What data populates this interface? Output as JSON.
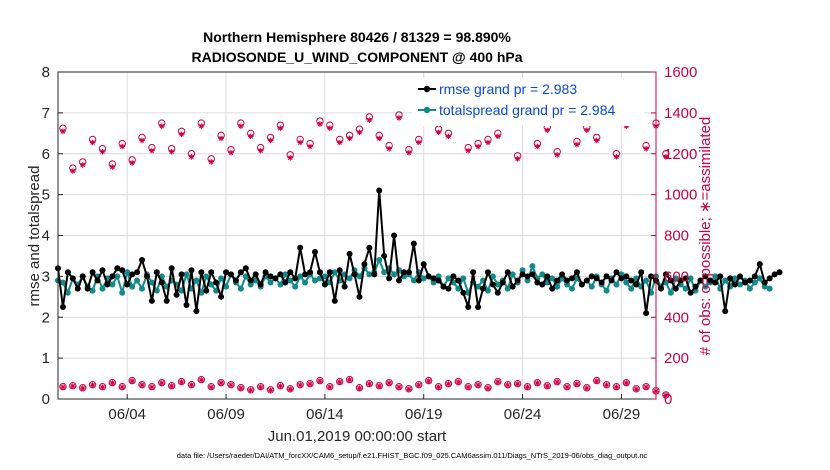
{
  "chart_data": {
    "type": "line",
    "title": "Northern Hemisphere 80426 / 81329 = 98.890%",
    "subtitle": "RADIOSONDE_U_WIND_COMPONENT @ 400 hPa",
    "xlabel": "Jun.01,2019 00:00:00 start",
    "ylabel_left": "rmse and totalspread",
    "ylabel_right": "# of obs: o=possible; ∗=assimilated",
    "ylim_left": [
      0,
      8
    ],
    "ylim_right": [
      0,
      1600
    ],
    "xlim": [
      0.5,
      30.75
    ],
    "yticks_left": [
      0,
      1,
      2,
      3,
      4,
      5,
      6,
      7,
      8
    ],
    "yticks_right": [
      0,
      200,
      400,
      600,
      800,
      1000,
      1200,
      1400,
      1600
    ],
    "xticks": [
      {
        "x": 4,
        "label": "06/04"
      },
      {
        "x": 9,
        "label": "06/09"
      },
      {
        "x": 14,
        "label": "06/14"
      },
      {
        "x": 19,
        "label": "06/19"
      },
      {
        "x": 24,
        "label": "06/24"
      },
      {
        "x": 29,
        "label": "06/29"
      }
    ],
    "footer": "data file: /Users/raeder/DAI/ATM_forcXX/CAM6_setup/f.e21.FHIST_BGC.f09_025.CAM6assim.011/Diags_NTrS_2019-06/obs_diag_output.nc",
    "x_start": 0.5,
    "x_step": 0.25,
    "series": [
      {
        "name": "rmse grand pr = 2.983",
        "axis": "left",
        "color": "#000000",
        "marker": "circle",
        "values": [
          3.2,
          2.25,
          3.1,
          2.95,
          2.7,
          3.0,
          2.7,
          3.1,
          2.9,
          3.15,
          2.8,
          3.0,
          3.2,
          3.15,
          2.8,
          3.05,
          3.1,
          3.4,
          3.0,
          2.4,
          3.1,
          2.85,
          2.4,
          3.2,
          2.55,
          3.05,
          2.3,
          3.15,
          2.15,
          3.1,
          2.65,
          3.1,
          2.85,
          2.5,
          3.1,
          3.05,
          2.9,
          3.1,
          3.2,
          2.9,
          3.05,
          2.8,
          3.1,
          3.0,
          2.95,
          3.05,
          2.85,
          3.1,
          2.95,
          3.7,
          3.05,
          3.1,
          3.6,
          3.1,
          2.8,
          3.1,
          2.4,
          3.15,
          2.75,
          3.55,
          3.05,
          2.5,
          3.3,
          3.7,
          3.05,
          5.1,
          3.5,
          2.95,
          4.0,
          2.9,
          3.1,
          3.1,
          3.8,
          2.9,
          3.3,
          3.0,
          2.95,
          2.9,
          2.75,
          2.7,
          3.0,
          2.9,
          2.6,
          2.25,
          3.1,
          2.25,
          2.7,
          3.1,
          2.8,
          2.6,
          2.85,
          3.1,
          2.75,
          2.9,
          3.05,
          3.0,
          3.05,
          2.85,
          2.8,
          3.0,
          2.7,
          2.9,
          3.05,
          2.9,
          2.95,
          3.1,
          2.8,
          2.9,
          3.0,
          2.95,
          2.85,
          3.0,
          2.9,
          3.1,
          2.95,
          3.0,
          2.9,
          2.8,
          3.1,
          2.1,
          3.0,
          2.9,
          2.7,
          3.05,
          2.9,
          2.7,
          2.9,
          2.95,
          2.6,
          2.75,
          2.9,
          3.0,
          2.9,
          2.85,
          3.0,
          2.15,
          2.95,
          2.8,
          3.0,
          2.85,
          2.9,
          3.0,
          3.3,
          2.85,
          2.95,
          3.05,
          3.1
        ]
      },
      {
        "name": "totalspread grand pr = 2.984",
        "axis": "left",
        "color": "#138a8a",
        "marker": "circle",
        "values": [
          2.9,
          2.85,
          2.6,
          2.95,
          2.8,
          3.0,
          2.75,
          2.65,
          3.0,
          2.7,
          2.95,
          2.8,
          3.0,
          2.6,
          3.1,
          2.75,
          2.9,
          2.7,
          3.05,
          2.85,
          2.65,
          3.0,
          2.75,
          2.9,
          2.8,
          2.65,
          3.05,
          2.7,
          2.9,
          2.6,
          3.0,
          2.8,
          2.65,
          2.95,
          2.75,
          3.05,
          2.85,
          2.7,
          3.0,
          2.8,
          2.9,
          2.75,
          3.0,
          2.85,
          2.95,
          2.8,
          3.05,
          2.9,
          2.75,
          3.0,
          2.85,
          3.05,
          2.9,
          2.95,
          3.0,
          2.85,
          3.1,
          2.9,
          3.05,
          2.95,
          3.15,
          3.0,
          3.2,
          3.05,
          3.1,
          3.4,
          3.1,
          3.2,
          3.05,
          3.15,
          3.0,
          3.05,
          2.9,
          3.1,
          2.95,
          3.0,
          2.85,
          3.0,
          2.75,
          2.95,
          2.85,
          2.7,
          2.95,
          2.6,
          2.85,
          2.75,
          2.9,
          2.65,
          3.0,
          2.8,
          2.9,
          2.7,
          3.05,
          2.85,
          3.15,
          2.9,
          3.25,
          2.95,
          3.05,
          2.85,
          2.95,
          2.75,
          2.95,
          2.8,
          2.7,
          2.95,
          2.8,
          2.9,
          2.75,
          3.0,
          2.8,
          2.65,
          2.95,
          2.8,
          3.05,
          2.85,
          2.7,
          2.95,
          2.75,
          2.9,
          2.6,
          3.0,
          2.75,
          2.85,
          2.6,
          2.95,
          2.8,
          2.7,
          2.95,
          2.65,
          2.9,
          2.75,
          2.85,
          3.0,
          2.7,
          2.9,
          2.75,
          2.95,
          2.8,
          2.9,
          2.7,
          2.85,
          2.95,
          2.75,
          2.7
        ]
      }
    ],
    "obs_possible": {
      "name": "possible",
      "axis": "right",
      "color": "#cc0044",
      "marker": "circle",
      "x_start": 0.75,
      "x_step": 0.5,
      "values": [
        1325,
        1130,
        1160,
        1270,
        1225,
        1150,
        1250,
        1170,
        1280,
        1230,
        1350,
        1225,
        1310,
        1200,
        1350,
        1175,
        1290,
        1220,
        1350,
        1300,
        1230,
        1280,
        1340,
        1195,
        1270,
        1250,
        1360,
        1340,
        1270,
        1290,
        1320,
        1380,
        1290,
        1240,
        1390,
        1220,
        1270,
        1370,
        1320,
        1300,
        1380,
        1230,
        1250,
        1270,
        1300,
        1410,
        1190,
        1380,
        1250,
        1330,
        1210,
        1370,
        1260,
        1330,
        1280,
        1400,
        1200,
        1350,
        1420,
        1240,
        1350,
        1200
      ]
    },
    "obs_assimilated": {
      "name": "assimilated",
      "axis": "right",
      "color": "#cc0044",
      "marker": "asterisk",
      "x_start": 0.75,
      "x_step": 0.5,
      "values": [
        1310,
        1115,
        1145,
        1255,
        1210,
        1135,
        1235,
        1155,
        1265,
        1215,
        1335,
        1210,
        1295,
        1185,
        1335,
        1160,
        1275,
        1205,
        1335,
        1285,
        1215,
        1265,
        1325,
        1180,
        1255,
        1235,
        1345,
        1325,
        1255,
        1275,
        1305,
        1365,
        1275,
        1225,
        1375,
        1205,
        1255,
        1355,
        1305,
        1285,
        1365,
        1215,
        1235,
        1255,
        1285,
        1395,
        1175,
        1365,
        1235,
        1315,
        1195,
        1355,
        1245,
        1315,
        1265,
        1385,
        1185,
        1335,
        1405,
        1225,
        1335,
        1185
      ]
    },
    "low_possible": {
      "name": "low possible",
      "axis": "right",
      "color": "#cc0044",
      "marker": "circle",
      "x_start": 0.75,
      "x_step": 0.5,
      "values": [
        60,
        65,
        55,
        70,
        60,
        80,
        60,
        90,
        70,
        60,
        80,
        65,
        85,
        70,
        95,
        60,
        80,
        70,
        55,
        45,
        60,
        45,
        65,
        50,
        70,
        75,
        90,
        60,
        85,
        95,
        55,
        75,
        65,
        80,
        60,
        50,
        70,
        90,
        60,
        75,
        85,
        60,
        70,
        55,
        85,
        70,
        75,
        60,
        80,
        65,
        85,
        60,
        75,
        55,
        90,
        70,
        60,
        80,
        50,
        60,
        40,
        20
      ]
    },
    "low_assimilated": {
      "name": "low assimilated",
      "axis": "right",
      "color": "#cc0044",
      "marker": "asterisk",
      "x_start": 0.75,
      "x_step": 0.5,
      "values": [
        58,
        63,
        53,
        68,
        58,
        78,
        58,
        88,
        68,
        58,
        78,
        63,
        83,
        68,
        93,
        58,
        78,
        68,
        53,
        43,
        58,
        43,
        63,
        48,
        68,
        73,
        88,
        58,
        83,
        93,
        53,
        73,
        63,
        78,
        58,
        48,
        68,
        88,
        58,
        73,
        83,
        58,
        68,
        53,
        83,
        68,
        73,
        58,
        78,
        63,
        83,
        58,
        73,
        53,
        88,
        68,
        58,
        78,
        48,
        58,
        38,
        18
      ]
    }
  }
}
